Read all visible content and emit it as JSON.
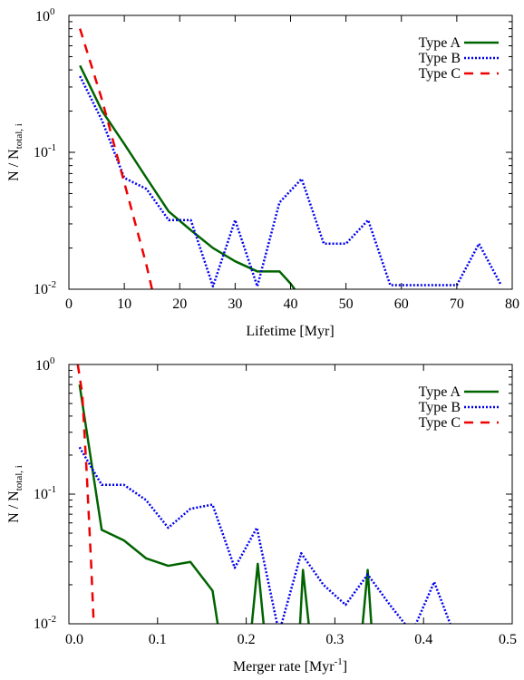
{
  "chart_data": [
    {
      "type": "line",
      "xlabel": "Lifetime [Myr]",
      "ylabel": "N / N_total, i",
      "ylabel_main": "N / N",
      "ylabel_sub": "total, i",
      "x_scale": "linear",
      "y_scale": "log",
      "xlim": [
        0,
        80
      ],
      "ylim": [
        0.01,
        1
      ],
      "x_ticks": [
        0,
        10,
        20,
        30,
        40,
        50,
        60,
        70,
        80
      ],
      "x_tick_labels": [
        "0",
        "10",
        "20",
        "30",
        "40",
        "50",
        "60",
        "70",
        "80"
      ],
      "y_tick_labels": [
        {
          "value": 1,
          "base": "10",
          "exp": "0"
        },
        {
          "value": 0.1,
          "base": "10",
          "exp": "-1"
        },
        {
          "value": 0.01,
          "base": "10",
          "exp": "-2"
        }
      ],
      "grid": false,
      "legend_position": "top-right",
      "series": [
        {
          "name": "Type A",
          "color": "#006400",
          "dash": "solid",
          "x": [
            2,
            6,
            10,
            14,
            18,
            22,
            26,
            30,
            34,
            38,
            40,
            42
          ],
          "y": [
            0.43,
            0.2,
            0.115,
            0.065,
            0.037,
            0.027,
            0.02,
            0.016,
            0.0135,
            0.0135,
            0.011,
            0.0085
          ]
        },
        {
          "name": "Type B",
          "color": "#0000ee",
          "dash": "dotted",
          "x": [
            2,
            6,
            10,
            14,
            18,
            22,
            26,
            30,
            34,
            38,
            42,
            46,
            50,
            54,
            58,
            62,
            66,
            70,
            74,
            78
          ],
          "y": [
            0.36,
            0.17,
            0.065,
            0.054,
            0.032,
            0.032,
            0.0105,
            0.032,
            0.0105,
            0.043,
            0.064,
            0.0215,
            0.0215,
            0.032,
            0.0107,
            0.0107,
            0.0107,
            0.0107,
            0.0215,
            0.0107
          ]
        },
        {
          "name": "Type C",
          "color": "#ee0000",
          "dash": "dashed",
          "x": [
            2,
            6,
            10,
            14,
            15
          ],
          "y": [
            0.8,
            0.24,
            0.06,
            0.015,
            0.01
          ]
        }
      ]
    },
    {
      "type": "line",
      "xlabel": "Merger rate [Myr^-1]",
      "xlabel_main": "Merger rate [Myr",
      "xlabel_sup": "-1",
      "xlabel_tail": "]",
      "ylabel": "N / N_total, i",
      "ylabel_main": "N / N",
      "ylabel_sub": "total, i",
      "x_scale": "linear",
      "y_scale": "log",
      "xlim": [
        0,
        0.5
      ],
      "ylim": [
        0.01,
        1
      ],
      "x_ticks": [
        0,
        0.1,
        0.2,
        0.3,
        0.4,
        0.5
      ],
      "x_tick_labels": [
        "0.0",
        "0.1",
        "0.2",
        "0.3",
        "0.4",
        "0.5"
      ],
      "y_tick_labels": [
        {
          "value": 1,
          "base": "10",
          "exp": "0"
        },
        {
          "value": 0.1,
          "base": "10",
          "exp": "-1"
        },
        {
          "value": 0.01,
          "base": "10",
          "exp": "-2"
        }
      ],
      "grid": false,
      "legend_position": "top-right",
      "series": [
        {
          "name": "Type A",
          "color": "#006400",
          "dash": "solid",
          "x": [
            0.012,
            0.037,
            0.062,
            0.087,
            0.112,
            0.137,
            0.162,
            0.17,
            0.205,
            0.213,
            0.221,
            0.26,
            0.264,
            0.272,
            0.33,
            0.337,
            0.342
          ],
          "y": [
            0.7,
            0.053,
            0.044,
            0.032,
            0.028,
            0.03,
            0.018,
            0.008,
            0.008,
            0.029,
            0.008,
            0.008,
            0.026,
            0.008,
            0.008,
            0.026,
            0.008
          ]
        },
        {
          "name": "Type B",
          "color": "#0000ee",
          "dash": "dotted",
          "x": [
            0.012,
            0.037,
            0.062,
            0.087,
            0.112,
            0.137,
            0.162,
            0.187,
            0.212,
            0.237,
            0.262,
            0.287,
            0.312,
            0.337,
            0.362,
            0.387,
            0.412,
            0.437
          ],
          "y": [
            0.23,
            0.118,
            0.118,
            0.09,
            0.055,
            0.077,
            0.083,
            0.027,
            0.055,
            0.0085,
            0.035,
            0.02,
            0.014,
            0.024,
            0.014,
            0.0085,
            0.021,
            0.0075
          ]
        },
        {
          "name": "Type C",
          "color": "#ee0000",
          "dash": "dashed",
          "x": [
            0.01,
            0.015,
            0.02,
            0.025,
            0.028
          ],
          "y": [
            1.0,
            0.6,
            0.15,
            0.03,
            0.01
          ]
        }
      ]
    }
  ]
}
